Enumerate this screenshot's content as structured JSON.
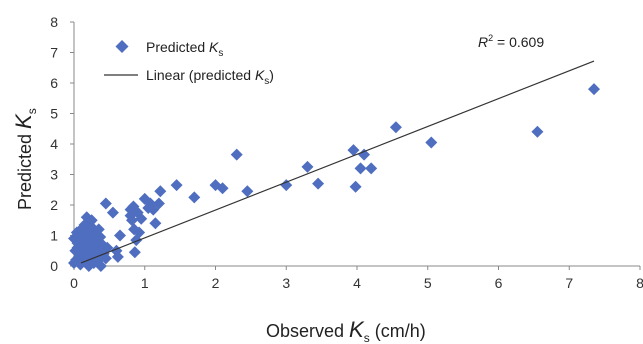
{
  "chart_data": {
    "type": "scatter",
    "xlabel": {
      "prefix": "Observed ",
      "symbol": "K",
      "subscript": "s",
      "suffix": " (cm/h)"
    },
    "ylabel": {
      "prefix": "Predicted ",
      "symbol": "K",
      "subscript": "s"
    },
    "xlim": [
      0,
      8
    ],
    "ylim": [
      0,
      8
    ],
    "x_ticks": [
      "0",
      "1",
      "2",
      "3",
      "4",
      "5",
      "6",
      "7",
      "8"
    ],
    "y_ticks": [
      "0",
      "1",
      "2",
      "3",
      "4",
      "5",
      "6",
      "7",
      "8"
    ],
    "grid": false,
    "legend_position": "top-left",
    "legend": [
      {
        "marker": "diamond",
        "text": "Predicted ",
        "symbol": "K",
        "subscript": "s"
      },
      {
        "marker": "line",
        "text": "Linear (predicted ",
        "symbol": "K",
        "subscript": "s",
        "suffix": ")"
      }
    ],
    "annotation": {
      "text": "R",
      "superscript": "2",
      "value": " = 0.609"
    },
    "colors": {
      "points": "#4F6EC0",
      "trendline": "#333333",
      "axis": "#888888"
    },
    "trendline": {
      "x": [
        0.1,
        7.35
      ],
      "y": [
        0.1,
        6.72
      ]
    },
    "series": [
      {
        "name": "Predicted Ks",
        "points": [
          [
            0.0,
            0.1
          ],
          [
            0.0,
            0.9
          ],
          [
            0.02,
            0.5
          ],
          [
            0.03,
            0.2
          ],
          [
            0.04,
            1.1
          ],
          [
            0.05,
            0.6
          ],
          [
            0.05,
            0.75
          ],
          [
            0.07,
            0.3
          ],
          [
            0.08,
            0.9
          ],
          [
            0.09,
            0.05
          ],
          [
            0.1,
            1.2
          ],
          [
            0.1,
            0.45
          ],
          [
            0.12,
            0.7
          ],
          [
            0.13,
            0.15
          ],
          [
            0.14,
            1.0
          ],
          [
            0.15,
            0.55
          ],
          [
            0.15,
            1.35
          ],
          [
            0.16,
            0.25
          ],
          [
            0.17,
            0.85
          ],
          [
            0.18,
            1.6
          ],
          [
            0.19,
            0.4
          ],
          [
            0.2,
            1.1
          ],
          [
            0.2,
            0.65
          ],
          [
            0.21,
            0.0
          ],
          [
            0.22,
            0.95
          ],
          [
            0.23,
            1.45
          ],
          [
            0.24,
            0.3
          ],
          [
            0.25,
            0.75
          ],
          [
            0.26,
            1.25
          ],
          [
            0.27,
            0.5
          ],
          [
            0.28,
            0.1
          ],
          [
            0.29,
            0.9
          ],
          [
            0.3,
            0.6
          ],
          [
            0.31,
            1.05
          ],
          [
            0.32,
            0.35
          ],
          [
            0.33,
            0.8
          ],
          [
            0.35,
            0.2
          ],
          [
            0.36,
            0.55
          ],
          [
            0.37,
            0.95
          ],
          [
            0.38,
            0.0
          ],
          [
            0.4,
            0.7
          ],
          [
            0.42,
            0.4
          ],
          [
            0.45,
            0.25
          ],
          [
            0.47,
            0.6
          ],
          [
            0.35,
            1.2
          ],
          [
            0.25,
            1.5
          ],
          [
            0.2,
            0.9
          ],
          [
            0.18,
            0.3
          ],
          [
            0.28,
            0.7
          ],
          [
            0.45,
            2.05
          ],
          [
            0.55,
            1.75
          ],
          [
            0.6,
            0.5
          ],
          [
            0.62,
            0.3
          ],
          [
            0.65,
            1.0
          ],
          [
            0.8,
            1.65
          ],
          [
            0.8,
            1.85
          ],
          [
            0.82,
            1.5
          ],
          [
            0.84,
            1.95
          ],
          [
            0.85,
            1.2
          ],
          [
            0.86,
            0.45
          ],
          [
            0.88,
            0.85
          ],
          [
            0.9,
            1.75
          ],
          [
            0.92,
            1.1
          ],
          [
            0.95,
            1.55
          ],
          [
            1.0,
            2.2
          ],
          [
            1.05,
            1.9
          ],
          [
            1.08,
            2.05
          ],
          [
            1.12,
            1.85
          ],
          [
            1.15,
            1.4
          ],
          [
            1.2,
            2.05
          ],
          [
            1.22,
            2.45
          ],
          [
            1.45,
            2.65
          ],
          [
            1.7,
            2.25
          ],
          [
            2.0,
            2.65
          ],
          [
            2.1,
            2.55
          ],
          [
            2.3,
            3.65
          ],
          [
            2.45,
            2.45
          ],
          [
            3.0,
            2.65
          ],
          [
            3.3,
            3.25
          ],
          [
            3.45,
            2.7
          ],
          [
            3.95,
            3.8
          ],
          [
            3.98,
            2.6
          ],
          [
            4.05,
            3.2
          ],
          [
            4.1,
            3.65
          ],
          [
            4.2,
            3.2
          ],
          [
            4.55,
            4.55
          ],
          [
            5.05,
            4.05
          ],
          [
            6.55,
            4.4
          ],
          [
            7.35,
            5.8
          ]
        ]
      }
    ]
  }
}
